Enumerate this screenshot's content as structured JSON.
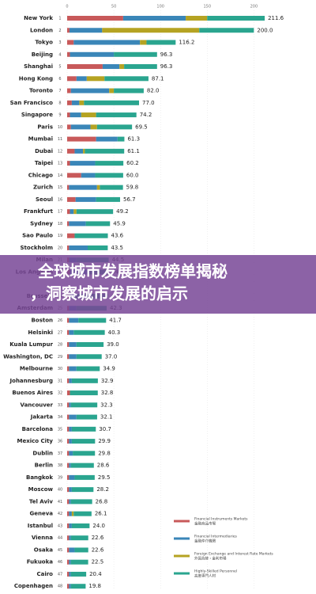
{
  "chart_data": {
    "type": "stacked-bar-horizontal",
    "title_lines": [
      "全球城市发展指数榜单揭秘",
      "，洞察城市发展的启示"
    ],
    "categories": [
      "New York",
      "London",
      "Tokyo",
      "Beijing",
      "Shanghai",
      "Hong Kong",
      "Toronto",
      "San Francisco",
      "Singapore",
      "Paris",
      "Mumbai",
      "Dubai",
      "Taipei",
      "Chicago",
      "Zurich",
      "Seoul",
      "Frankfurt",
      "Sydney",
      "Sao Paulo",
      "Stockholm",
      "Milan",
      "Los Angeles",
      "Brussels",
      "Amsterdam",
      "Boston",
      "Helsinki",
      "Kuala Lumpur",
      "Washington, DC",
      "Melbourne",
      "Johannesburg",
      "Buenos Aires",
      "Vancouver",
      "Jakarta",
      "Barcelona",
      "Mexico City",
      "Dublin",
      "Berlin",
      "Bangkok",
      "Moscow",
      "Tel Aviv",
      "Geneva",
      "Istanbul",
      "Vienna",
      "Osaka",
      "Fukuoka",
      "Cairo",
      "Copenhagen"
    ],
    "ranks": [
      1,
      2,
      3,
      4,
      5,
      6,
      7,
      8,
      9,
      10,
      11,
      12,
      13,
      14,
      15,
      16,
      17,
      18,
      19,
      20,
      21,
      22,
      24,
      25,
      26,
      27,
      28,
      29,
      30,
      31,
      32,
      33,
      34,
      35,
      36,
      37,
      38,
      39,
      40,
      41,
      42,
      43,
      44,
      45,
      46,
      47,
      48
    ],
    "series": [
      {
        "name": "Financial Instruments Markets",
        "name_ja": "金融商品市場",
        "color": "#c8595a",
        "values": [
          60,
          2.5,
          7,
          3,
          38,
          10,
          4,
          5,
          3,
          4,
          31,
          8,
          3,
          15,
          2,
          9,
          3,
          2,
          8,
          2,
          2,
          3,
          2,
          2,
          2,
          2,
          2,
          2,
          2,
          2,
          3,
          2,
          2,
          2,
          2,
          2,
          2,
          2,
          2,
          2,
          2,
          2,
          2,
          2,
          2,
          2,
          2
        ]
      },
      {
        "name": "Financial Intermediaries",
        "name_ja": "金融仲介機関",
        "color": "#3a86b8",
        "values": [
          67,
          35,
          71,
          47,
          18,
          11,
          41,
          8,
          12,
          21,
          23,
          9,
          27,
          15,
          30,
          22,
          4,
          18,
          0,
          20,
          8,
          20,
          6,
          8,
          10,
          5,
          8,
          8,
          8,
          3,
          0,
          2,
          8,
          3,
          3,
          4,
          2,
          6,
          3,
          2,
          3,
          3,
          2,
          6,
          2,
          2,
          2
        ]
      },
      {
        "name": "Foreign Exchange and Interest Rate Markets",
        "name_ja": "外国為替・金利市場",
        "color": "#b5a322",
        "values": [
          23,
          104,
          7,
          0,
          5,
          19,
          5,
          5,
          16,
          7,
          0,
          2,
          0,
          0,
          3,
          0,
          3,
          0,
          0,
          0,
          0,
          0,
          0,
          0,
          0,
          0,
          0,
          0,
          0,
          0,
          0,
          0,
          0,
          0,
          0,
          0,
          0,
          0,
          0,
          0,
          2,
          0,
          0,
          0,
          0,
          0,
          0
        ]
      },
      {
        "name": "Highly-Skilled Personnel",
        "name_ja": "高度専門人材",
        "color": "#2aa58f",
        "values": [
          61.6,
          58.5,
          31.2,
          46.3,
          35.3,
          47.1,
          32,
          59,
          43.2,
          37.5,
          7.3,
          42.1,
          30.2,
          30,
          24.8,
          25.7,
          39.2,
          25.9,
          35.6,
          21.5,
          34.5,
          21.1,
          35.6,
          32.3,
          29.7,
          33.3,
          29,
          27,
          24.9,
          27.9,
          29.8,
          28.3,
          22.1,
          25.7,
          24.9,
          23.8,
          24.6,
          21.5,
          23.2,
          22.8,
          19.1,
          19,
          18.6,
          14.6,
          18.5,
          16.4,
          15.8
        ]
      }
    ],
    "totals": [
      211.6,
      200,
      116.2,
      96.3,
      96.3,
      87.1,
      82,
      77,
      74.2,
      69.5,
      61.3,
      61.1,
      60.2,
      60,
      59.8,
      56.7,
      49.2,
      45.9,
      43.6,
      43.5,
      44.5,
      44.1,
      43.6,
      42.3,
      41.7,
      40.3,
      39,
      37,
      34.9,
      32.9,
      32.8,
      32.3,
      32.1,
      30.7,
      29.9,
      29.8,
      28.6,
      29.5,
      28.2,
      26.8,
      26.1,
      24,
      22.6,
      22.6,
      22.5,
      20.4,
      19.8
    ],
    "total_labels": [
      "211.6",
      "200.0",
      "116.2",
      "96.3",
      "96.3",
      "87.1",
      "82.0",
      "77.0",
      "74.2",
      "69.5",
      "61.3",
      "61.1",
      "60.2",
      "60.0",
      "59.8",
      "56.7",
      "49.2",
      "45.9",
      "43.6",
      "43.5",
      "44.5",
      "44.1",
      "43.6",
      "42.3",
      "41.7",
      "40.3",
      "39.0",
      "37.0",
      "34.9",
      "32.9",
      "32.8",
      "32.3",
      "32.1",
      "30.7",
      "29.9",
      "29.8",
      "28.6",
      "29.5",
      "28.2",
      "26.8",
      "26.1",
      "24.0",
      "22.6",
      "22.6",
      "22.5",
      "20.4",
      "19.8"
    ],
    "xlim": [
      0,
      220
    ],
    "xticks": [
      0,
      50,
      100,
      150,
      200
    ],
    "grid": true
  }
}
